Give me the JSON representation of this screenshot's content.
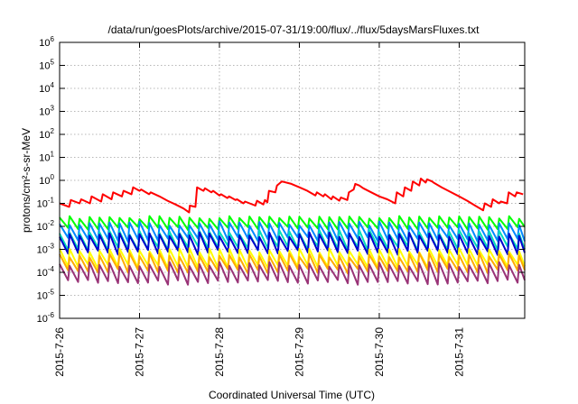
{
  "chart_data": {
    "type": "line",
    "title": "/data/run/goesPlots/archive/2015-07-31/19:00/flux/../flux/5daysMarsFluxes.txt",
    "xlabel": "Coordinated Universal Time (UTC)",
    "ylabel": "protons/cm²-s-sr-MeV",
    "y_scale": "log",
    "ylim": [
      1e-06,
      1000000.0
    ],
    "xlim_days": [
      0,
      5.82
    ],
    "y_ticks": [
      {
        "exp": "-6",
        "value": 1e-06
      },
      {
        "exp": "-5",
        "value": 1e-05
      },
      {
        "exp": "-4",
        "value": 0.0001
      },
      {
        "exp": "-3",
        "value": 0.001
      },
      {
        "exp": "-2",
        "value": 0.01
      },
      {
        "exp": "-1",
        "value": 0.1
      },
      {
        "exp": "0",
        "value": 1
      },
      {
        "exp": "1",
        "value": 10.0
      },
      {
        "exp": "2",
        "value": 100.0
      },
      {
        "exp": "3",
        "value": 1000.0
      },
      {
        "exp": "4",
        "value": 10000.0
      },
      {
        "exp": "5",
        "value": 100000.0
      },
      {
        "exp": "6",
        "value": 1000000.0
      }
    ],
    "x_ticks": [
      {
        "label": "2015-7-26",
        "day": 0
      },
      {
        "label": "2015-7-27",
        "day": 1
      },
      {
        "label": "2015-7-28",
        "day": 2
      },
      {
        "label": "2015-7-29",
        "day": 3
      },
      {
        "label": "2015-7-30",
        "day": 4
      },
      {
        "label": "2015-7-31",
        "day": 5
      }
    ],
    "grid": true,
    "series": [
      {
        "color": "#ff0000",
        "day": [
          0,
          0.12,
          0.14,
          0.25,
          0.27,
          0.38,
          0.4,
          0.52,
          0.54,
          0.65,
          0.67,
          0.78,
          0.8,
          0.9,
          0.92,
          1.0,
          1.02,
          1.12,
          1.14,
          1.25,
          1.35,
          1.45,
          1.55,
          1.62,
          1.63,
          1.7,
          1.72,
          1.8,
          1.82,
          1.9,
          1.92,
          2.0,
          2.02,
          2.1,
          2.12,
          2.2,
          2.22,
          2.3,
          2.32,
          2.45,
          2.47,
          2.55,
          2.57,
          2.6,
          2.62,
          2.7,
          2.72,
          2.78,
          2.9,
          3.0,
          3.1,
          3.2,
          3.22,
          3.3,
          3.32,
          3.4,
          3.42,
          3.5,
          3.52,
          3.6,
          3.62,
          3.68,
          3.7,
          3.75,
          3.8,
          3.9,
          4.0,
          4.1,
          4.2,
          4.22,
          4.3,
          4.32,
          4.4,
          4.42,
          4.5,
          4.52,
          4.58,
          4.6,
          4.66,
          4.68,
          4.78,
          4.9,
          5.0,
          5.1,
          5.2,
          5.3,
          5.32,
          5.4,
          5.42,
          5.5,
          5.52,
          5.6,
          5.62,
          5.7,
          5.72,
          5.8
        ],
        "values": [
          0.1,
          0.07,
          0.14,
          0.1,
          0.15,
          0.1,
          0.2,
          0.12,
          0.25,
          0.15,
          0.3,
          0.2,
          0.35,
          0.25,
          0.5,
          0.35,
          0.4,
          0.25,
          0.3,
          0.2,
          0.13,
          0.09,
          0.06,
          0.04,
          0.08,
          0.07,
          0.5,
          0.35,
          0.45,
          0.3,
          0.35,
          0.22,
          0.25,
          0.17,
          0.2,
          0.14,
          0.15,
          0.1,
          0.12,
          0.08,
          0.13,
          0.09,
          0.14,
          0.11,
          0.35,
          0.3,
          0.6,
          0.9,
          0.7,
          0.5,
          0.35,
          0.22,
          0.3,
          0.2,
          0.25,
          0.15,
          0.2,
          0.13,
          0.18,
          0.14,
          0.3,
          0.4,
          0.7,
          0.6,
          0.45,
          0.3,
          0.2,
          0.15,
          0.1,
          0.3,
          0.2,
          0.5,
          0.35,
          0.9,
          0.6,
          1.2,
          0.8,
          1.1,
          0.9,
          0.8,
          0.5,
          0.3,
          0.2,
          0.13,
          0.08,
          0.05,
          0.1,
          0.07,
          0.15,
          0.1,
          0.12,
          0.1,
          0.3,
          0.2,
          0.3,
          0.25
        ]
      },
      {
        "color": "#00ff00",
        "base": 0.014,
        "amp": 0.3,
        "seed": 1
      },
      {
        "color": "#0088ff",
        "base": 0.006,
        "amp": 0.45,
        "seed": 2
      },
      {
        "color": "#00ddbb",
        "base": 0.0025,
        "amp": 0.45,
        "seed": 3
      },
      {
        "color": "#0000cc",
        "base": 0.0018,
        "amp": 0.5,
        "seed": 4
      },
      {
        "color": "#ffff00",
        "base": 0.0004,
        "amp": 0.45,
        "seed": 5
      },
      {
        "color": "#ffaa00",
        "base": 0.00025,
        "amp": 0.45,
        "seed": 6
      },
      {
        "color": "#993377",
        "base": 9e-05,
        "amp": 0.5,
        "seed": 7
      }
    ]
  }
}
